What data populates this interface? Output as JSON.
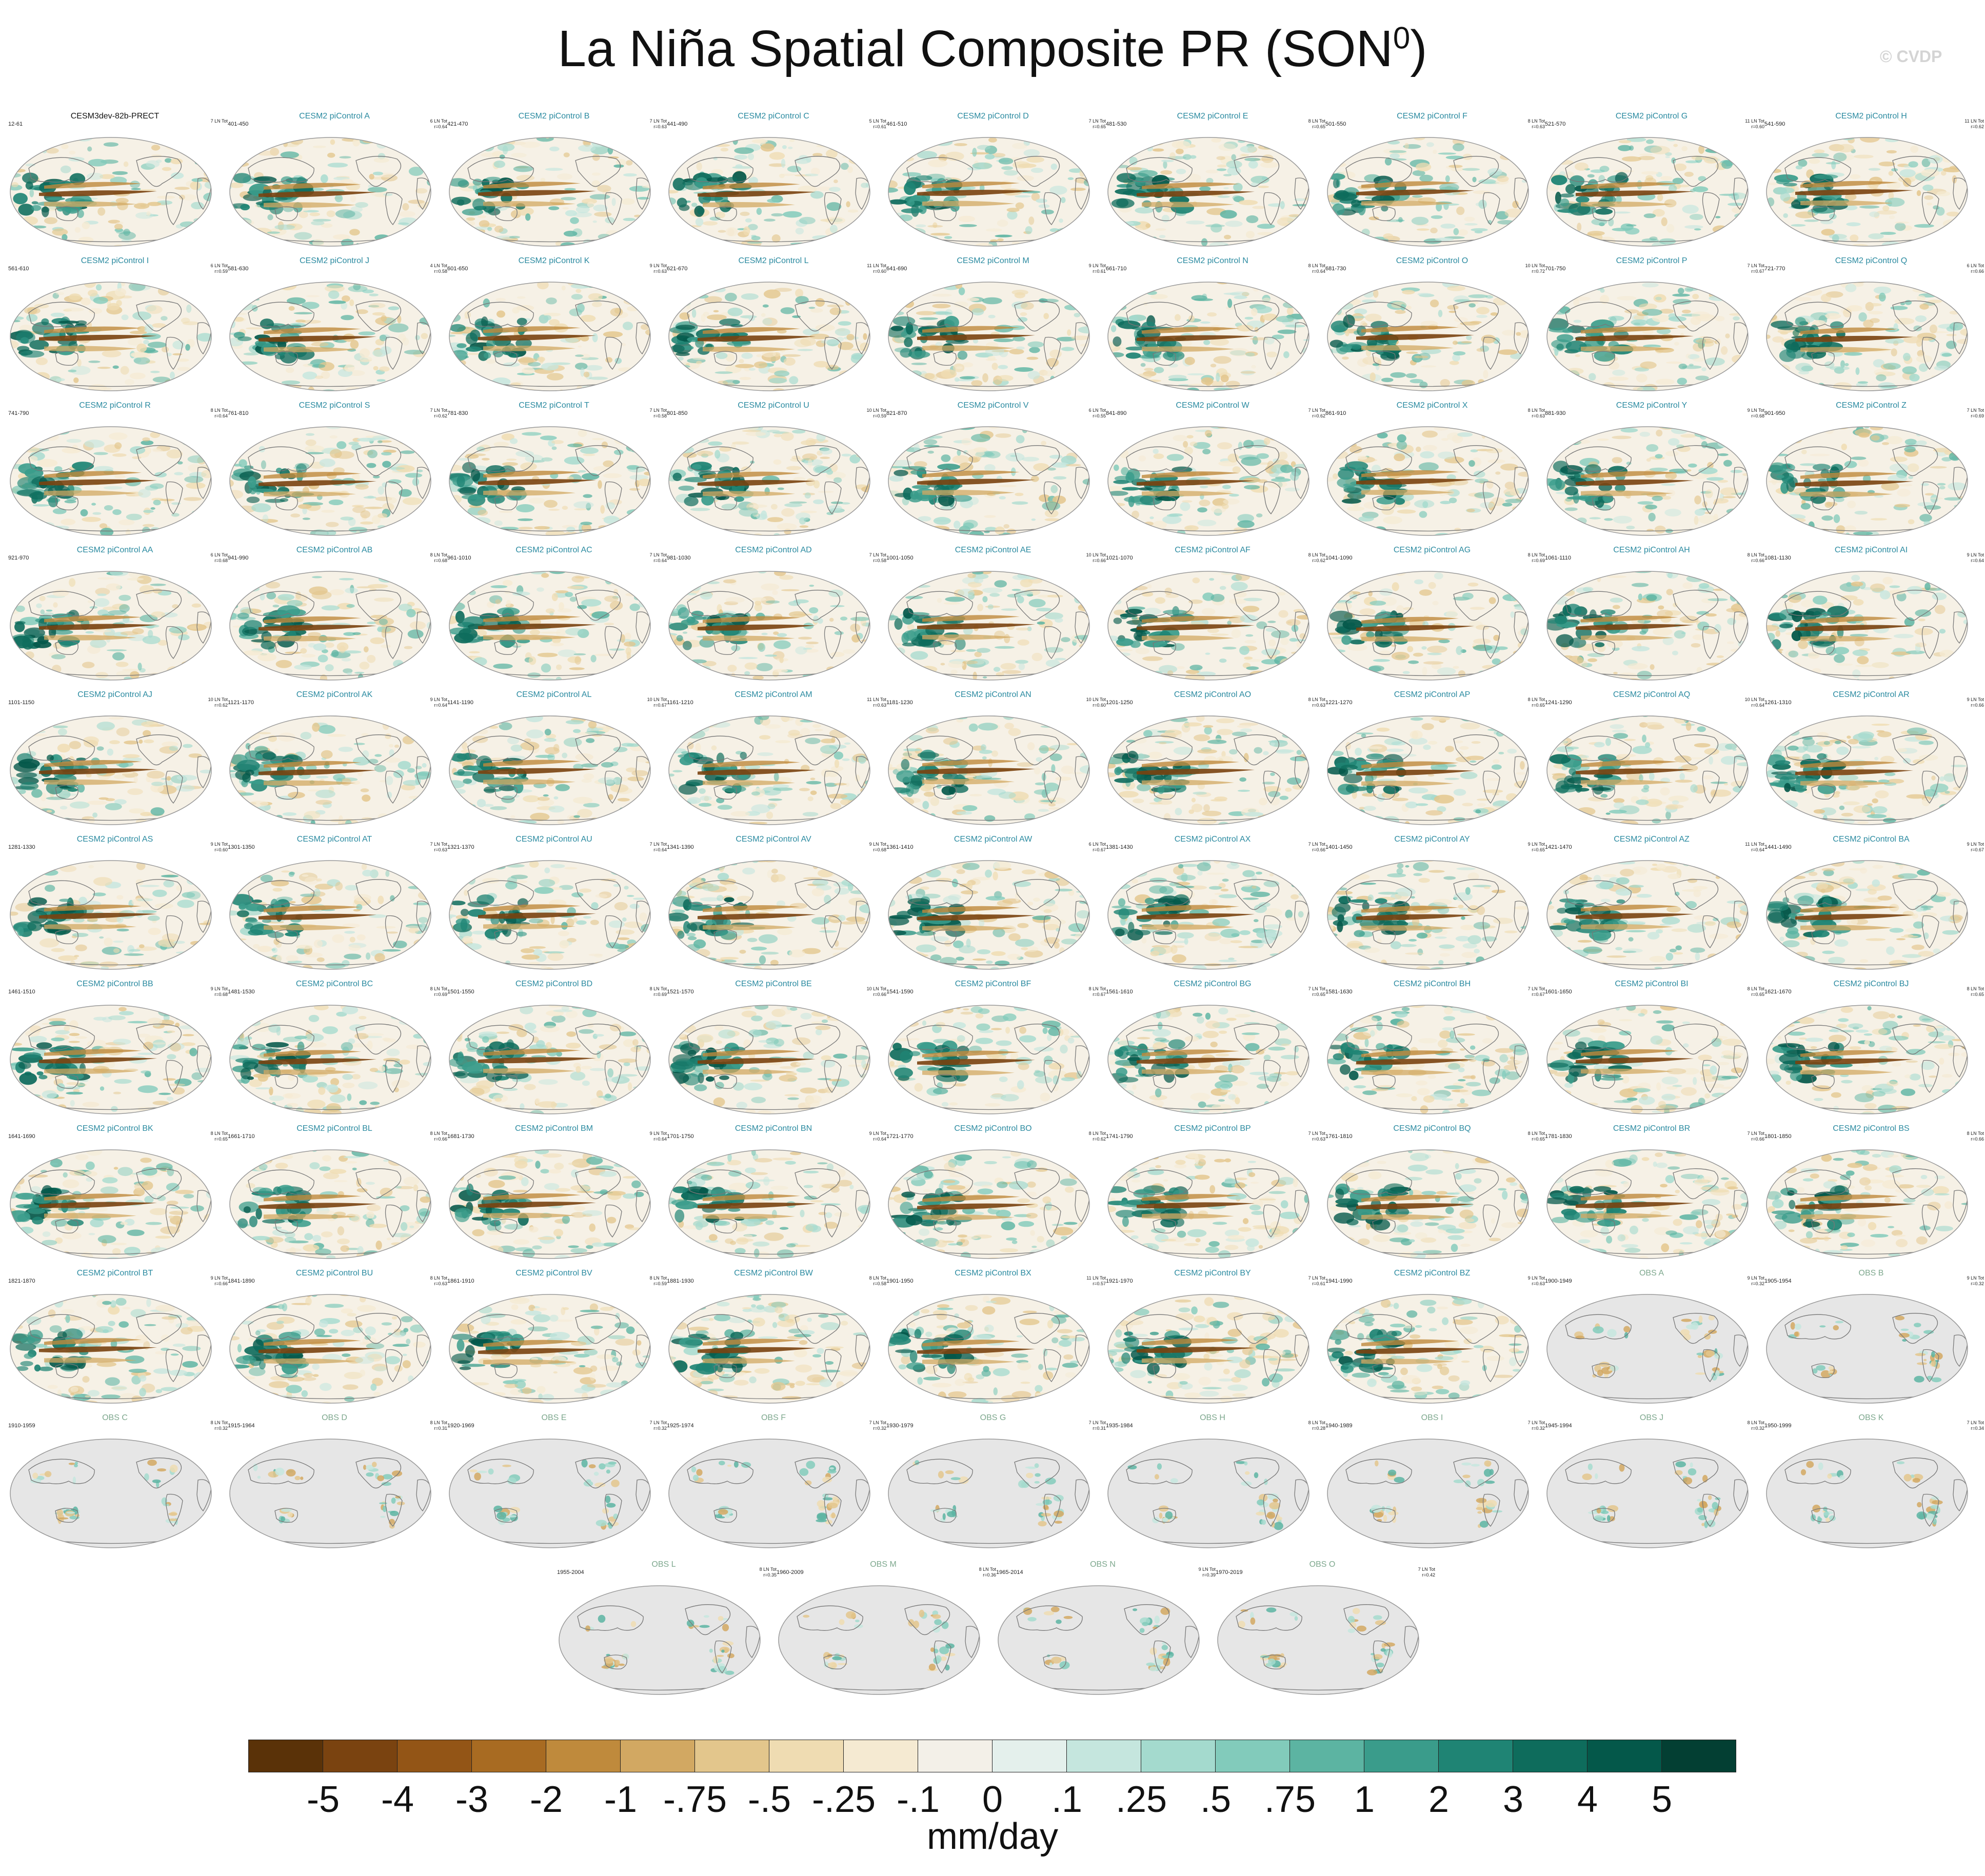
{
  "page": {
    "title": "La Niña Spatial Composite PR (SON",
    "title_superscript": "0",
    "title_close": ")",
    "watermark": "© CVDP"
  },
  "chart_data": {
    "type": "heatmap",
    "description": "Composite precipitation anomaly maps",
    "colors": {
      "main_title": "#111111",
      "model_title": "#2a8aa0",
      "obs_title": "#7ea88e",
      "land_missing": "#e6e6e6",
      "ocean_neutral": "#f6f1e6"
    },
    "panels": [
      {
        "title": "CESM3dev-82b-PRECT",
        "years": "12-61",
        "count": "7 LN Tot",
        "r": "",
        "kind": "main"
      },
      {
        "title": "CESM2 piControl A",
        "years": "401-450",
        "count": "6 LN Tot",
        "r": "r=0.64",
        "kind": "model"
      },
      {
        "title": "CESM2 piControl B",
        "years": "421-470",
        "count": "7 LN Tot",
        "r": "r=0.63",
        "kind": "model"
      },
      {
        "title": "CESM2 piControl C",
        "years": "441-490",
        "count": "5 LN Tot",
        "r": "r=0.61",
        "kind": "model"
      },
      {
        "title": "CESM2 piControl D",
        "years": "461-510",
        "count": "7 LN Tot",
        "r": "r=0.65",
        "kind": "model"
      },
      {
        "title": "CESM2 piControl E",
        "years": "481-530",
        "count": "8 LN Tot",
        "r": "r=0.65",
        "kind": "model"
      },
      {
        "title": "CESM2 piControl F",
        "years": "501-550",
        "count": "8 LN Tot",
        "r": "r=0.63",
        "kind": "model"
      },
      {
        "title": "CESM2 piControl G",
        "years": "521-570",
        "count": "11 LN Tot",
        "r": "r=0.60",
        "kind": "model"
      },
      {
        "title": "CESM2 piControl H",
        "years": "541-590",
        "count": "11 LN Tot",
        "r": "r=0.62",
        "kind": "model"
      },
      {
        "title": "CESM2 piControl I",
        "years": "561-610",
        "count": "6 LN Tot",
        "r": "r=0.59",
        "kind": "model"
      },
      {
        "title": "CESM2 piControl J",
        "years": "581-630",
        "count": "4 LN Tot",
        "r": "r=0.58",
        "kind": "model"
      },
      {
        "title": "CESM2 piControl K",
        "years": "601-650",
        "count": "9 LN Tot",
        "r": "r=0.63",
        "kind": "model"
      },
      {
        "title": "CESM2 piControl L",
        "years": "621-670",
        "count": "11 LN Tot",
        "r": "r=0.60",
        "kind": "model"
      },
      {
        "title": "CESM2 piControl M",
        "years": "641-690",
        "count": "9 LN Tot",
        "r": "r=0.61",
        "kind": "model"
      },
      {
        "title": "CESM2 piControl N",
        "years": "661-710",
        "count": "8 LN Tot",
        "r": "r=0.64",
        "kind": "model"
      },
      {
        "title": "CESM2 piControl O",
        "years": "681-730",
        "count": "10 LN Tot",
        "r": "r=0.72",
        "kind": "model"
      },
      {
        "title": "CESM2 piControl P",
        "years": "701-750",
        "count": "7 LN Tot",
        "r": "r=0.67",
        "kind": "model"
      },
      {
        "title": "CESM2 piControl Q",
        "years": "721-770",
        "count": "6 LN Tot",
        "r": "r=0.66",
        "kind": "model"
      },
      {
        "title": "CESM2 piControl R",
        "years": "741-790",
        "count": "8 LN Tot",
        "r": "r=0.64",
        "kind": "model"
      },
      {
        "title": "CESM2 piControl S",
        "years": "761-810",
        "count": "7 LN Tot",
        "r": "r=0.62",
        "kind": "model"
      },
      {
        "title": "CESM2 piControl T",
        "years": "781-830",
        "count": "7 LN Tot",
        "r": "r=0.58",
        "kind": "model"
      },
      {
        "title": "CESM2 piControl U",
        "years": "801-850",
        "count": "10 LN Tot",
        "r": "r=0.59",
        "kind": "model"
      },
      {
        "title": "CESM2 piControl V",
        "years": "821-870",
        "count": "6 LN Tot",
        "r": "r=0.55",
        "kind": "model"
      },
      {
        "title": "CESM2 piControl W",
        "years": "841-890",
        "count": "7 LN Tot",
        "r": "r=0.62",
        "kind": "model"
      },
      {
        "title": "CESM2 piControl X",
        "years": "861-910",
        "count": "8 LN Tot",
        "r": "r=0.63",
        "kind": "model"
      },
      {
        "title": "CESM2 piControl Y",
        "years": "881-930",
        "count": "9 LN Tot",
        "r": "r=0.68",
        "kind": "model"
      },
      {
        "title": "CESM2 piControl Z",
        "years": "901-950",
        "count": "7 LN Tot",
        "r": "r=0.69",
        "kind": "model"
      },
      {
        "title": "CESM2 piControl AA",
        "years": "921-970",
        "count": "6 LN Tot",
        "r": "r=0.68",
        "kind": "model"
      },
      {
        "title": "CESM2 piControl AB",
        "years": "941-990",
        "count": "8 LN Tot",
        "r": "r=0.68",
        "kind": "model"
      },
      {
        "title": "CESM2 piControl AC",
        "years": "961-1010",
        "count": "7 LN Tot",
        "r": "r=0.64",
        "kind": "model"
      },
      {
        "title": "CESM2 piControl AD",
        "years": "981-1030",
        "count": "7 LN Tot",
        "r": "r=0.58",
        "kind": "model"
      },
      {
        "title": "CESM2 piControl AE",
        "years": "1001-1050",
        "count": "10 LN Tot",
        "r": "r=0.66",
        "kind": "model"
      },
      {
        "title": "CESM2 piControl AF",
        "years": "1021-1070",
        "count": "8 LN Tot",
        "r": "r=0.62",
        "kind": "model"
      },
      {
        "title": "CESM2 piControl AG",
        "years": "1041-1090",
        "count": "8 LN Tot",
        "r": "r=0.69",
        "kind": "model"
      },
      {
        "title": "CESM2 piControl AH",
        "years": "1061-1110",
        "count": "8 LN Tot",
        "r": "r=0.66",
        "kind": "model"
      },
      {
        "title": "CESM2 piControl AI",
        "years": "1081-1130",
        "count": "9 LN Tot",
        "r": "r=0.64",
        "kind": "model"
      },
      {
        "title": "CESM2 piControl AJ",
        "years": "1101-1150",
        "count": "10 LN Tot",
        "r": "r=0.62",
        "kind": "model"
      },
      {
        "title": "CESM2 piControl AK",
        "years": "1121-1170",
        "count": "9 LN Tot",
        "r": "r=0.64",
        "kind": "model"
      },
      {
        "title": "CESM2 piControl AL",
        "years": "1141-1190",
        "count": "10 LN Tot",
        "r": "r=0.67",
        "kind": "model"
      },
      {
        "title": "CESM2 piControl AM",
        "years": "1161-1210",
        "count": "11 LN Tot",
        "r": "r=0.63",
        "kind": "model"
      },
      {
        "title": "CESM2 piControl AN",
        "years": "1181-1230",
        "count": "10 LN Tot",
        "r": "r=0.60",
        "kind": "model"
      },
      {
        "title": "CESM2 piControl AO",
        "years": "1201-1250",
        "count": "8 LN Tot",
        "r": "r=0.63",
        "kind": "model"
      },
      {
        "title": "CESM2 piControl AP",
        "years": "1221-1270",
        "count": "8 LN Tot",
        "r": "r=0.65",
        "kind": "model"
      },
      {
        "title": "CESM2 piControl AQ",
        "years": "1241-1290",
        "count": "10 LN Tot",
        "r": "r=0.64",
        "kind": "model"
      },
      {
        "title": "CESM2 piControl AR",
        "years": "1261-1310",
        "count": "9 LN Tot",
        "r": "r=0.66",
        "kind": "model"
      },
      {
        "title": "CESM2 piControl AS",
        "years": "1281-1330",
        "count": "9 LN Tot",
        "r": "r=0.60",
        "kind": "model"
      },
      {
        "title": "CESM2 piControl AT",
        "years": "1301-1350",
        "count": "7 LN Tot",
        "r": "r=0.63",
        "kind": "model"
      },
      {
        "title": "CESM2 piControl AU",
        "years": "1321-1370",
        "count": "7 LN Tot",
        "r": "r=0.64",
        "kind": "model"
      },
      {
        "title": "CESM2 piControl AV",
        "years": "1341-1390",
        "count": "9 LN Tot",
        "r": "r=0.68",
        "kind": "model"
      },
      {
        "title": "CESM2 piControl AW",
        "years": "1361-1410",
        "count": "6 LN Tot",
        "r": "r=0.67",
        "kind": "model"
      },
      {
        "title": "CESM2 piControl AX",
        "years": "1381-1430",
        "count": "7 LN Tot",
        "r": "r=0.66",
        "kind": "model"
      },
      {
        "title": "CESM2 piControl AY",
        "years": "1401-1450",
        "count": "9 LN Tot",
        "r": "r=0.65",
        "kind": "model"
      },
      {
        "title": "CESM2 piControl AZ",
        "years": "1421-1470",
        "count": "11 LN Tot",
        "r": "r=0.64",
        "kind": "model"
      },
      {
        "title": "CESM2 piControl BA",
        "years": "1441-1490",
        "count": "9 LN Tot",
        "r": "r=0.67",
        "kind": "model"
      },
      {
        "title": "CESM2 piControl BB",
        "years": "1461-1510",
        "count": "9 LN Tot",
        "r": "r=0.68",
        "kind": "model"
      },
      {
        "title": "CESM2 piControl BC",
        "years": "1481-1530",
        "count": "8 LN Tot",
        "r": "r=0.69",
        "kind": "model"
      },
      {
        "title": "CESM2 piControl BD",
        "years": "1501-1550",
        "count": "8 LN Tot",
        "r": "r=0.69",
        "kind": "model"
      },
      {
        "title": "CESM2 piControl BE",
        "years": "1521-1570",
        "count": "10 LN Tot",
        "r": "r=0.66",
        "kind": "model"
      },
      {
        "title": "CESM2 piControl BF",
        "years": "1541-1590",
        "count": "8 LN Tot",
        "r": "r=0.67",
        "kind": "model"
      },
      {
        "title": "CESM2 piControl BG",
        "years": "1561-1610",
        "count": "7 LN Tot",
        "r": "r=0.65",
        "kind": "model"
      },
      {
        "title": "CESM2 piControl BH",
        "years": "1581-1630",
        "count": "7 LN Tot",
        "r": "r=0.67",
        "kind": "model"
      },
      {
        "title": "CESM2 piControl BI",
        "years": "1601-1650",
        "count": "8 LN Tot",
        "r": "r=0.65",
        "kind": "model"
      },
      {
        "title": "CESM2 piControl BJ",
        "years": "1621-1670",
        "count": "8 LN Tot",
        "r": "r=0.65",
        "kind": "model"
      },
      {
        "title": "CESM2 piControl BK",
        "years": "1641-1690",
        "count": "8 LN Tot",
        "r": "r=0.65",
        "kind": "model"
      },
      {
        "title": "CESM2 piControl BL",
        "years": "1661-1710",
        "count": "8 LN Tot",
        "r": "r=0.66",
        "kind": "model"
      },
      {
        "title": "CESM2 piControl BM",
        "years": "1681-1730",
        "count": "9 LN Tot",
        "r": "r=0.64",
        "kind": "model"
      },
      {
        "title": "CESM2 piControl BN",
        "years": "1701-1750",
        "count": "9 LN Tot",
        "r": "r=0.64",
        "kind": "model"
      },
      {
        "title": "CESM2 piControl BO",
        "years": "1721-1770",
        "count": "8 LN Tot",
        "r": "r=0.62",
        "kind": "model"
      },
      {
        "title": "CESM2 piControl BP",
        "years": "1741-1790",
        "count": "7 LN Tot",
        "r": "r=0.63",
        "kind": "model"
      },
      {
        "title": "CESM2 piControl BQ",
        "years": "1761-1810",
        "count": "8 LN Tot",
        "r": "r=0.65",
        "kind": "model"
      },
      {
        "title": "CESM2 piControl BR",
        "years": "1781-1830",
        "count": "7 LN Tot",
        "r": "r=0.66",
        "kind": "model"
      },
      {
        "title": "CESM2 piControl BS",
        "years": "1801-1850",
        "count": "8 LN Tot",
        "r": "r=0.66",
        "kind": "model"
      },
      {
        "title": "CESM2 piControl BT",
        "years": "1821-1870",
        "count": "9 LN Tot",
        "r": "r=0.66",
        "kind": "model"
      },
      {
        "title": "CESM2 piControl BU",
        "years": "1841-1890",
        "count": "8 LN Tot",
        "r": "r=0.63",
        "kind": "model"
      },
      {
        "title": "CESM2 piControl BV",
        "years": "1861-1910",
        "count": "8 LN Tot",
        "r": "r=0.59",
        "kind": "model"
      },
      {
        "title": "CESM2 piControl BW",
        "years": "1881-1930",
        "count": "8 LN Tot",
        "r": "r=0.58",
        "kind": "model"
      },
      {
        "title": "CESM2 piControl BX",
        "years": "1901-1950",
        "count": "11 LN Tot",
        "r": "r=0.57",
        "kind": "model"
      },
      {
        "title": "CESM2 piControl BY",
        "years": "1921-1970",
        "count": "7 LN Tot",
        "r": "r=0.61",
        "kind": "model"
      },
      {
        "title": "CESM2 piControl BZ",
        "years": "1941-1990",
        "count": "9 LN Tot",
        "r": "r=0.63",
        "kind": "model"
      },
      {
        "title": "OBS A",
        "years": "1900-1949",
        "count": "9 LN Tot",
        "r": "r=0.32",
        "kind": "obs"
      },
      {
        "title": "OBS B",
        "years": "1905-1954",
        "count": "9 LN Tot",
        "r": "r=0.32",
        "kind": "obs"
      },
      {
        "title": "OBS C",
        "years": "1910-1959",
        "count": "8 LN Tot",
        "r": "r=0.32",
        "kind": "obs"
      },
      {
        "title": "OBS D",
        "years": "1915-1964",
        "count": "8 LN Tot",
        "r": "r=0.31",
        "kind": "obs"
      },
      {
        "title": "OBS E",
        "years": "1920-1969",
        "count": "7 LN Tot",
        "r": "r=0.32",
        "kind": "obs"
      },
      {
        "title": "OBS F",
        "years": "1925-1974",
        "count": "7 LN Tot",
        "r": "r=0.32",
        "kind": "obs"
      },
      {
        "title": "OBS G",
        "years": "1930-1979",
        "count": "7 LN Tot",
        "r": "r=0.31",
        "kind": "obs"
      },
      {
        "title": "OBS H",
        "years": "1935-1984",
        "count": "8 LN Tot",
        "r": "r=0.28",
        "kind": "obs"
      },
      {
        "title": "OBS I",
        "years": "1940-1989",
        "count": "7 LN Tot",
        "r": "r=0.32",
        "kind": "obs"
      },
      {
        "title": "OBS J",
        "years": "1945-1994",
        "count": "8 LN Tot",
        "r": "r=0.32",
        "kind": "obs"
      },
      {
        "title": "OBS K",
        "years": "1950-1999",
        "count": "7 LN Tot",
        "r": "r=0.34",
        "kind": "obs"
      },
      {
        "title": "OBS L",
        "years": "1955-2004",
        "count": "8 LN Tot",
        "r": "r=0.35",
        "kind": "obs"
      },
      {
        "title": "OBS M",
        "years": "1960-2009",
        "count": "8 LN Tot",
        "r": "r=0.36",
        "kind": "obs"
      },
      {
        "title": "OBS N",
        "years": "1965-2014",
        "count": "9 LN Tot",
        "r": "r=0.39",
        "kind": "obs"
      },
      {
        "title": "OBS O",
        "years": "1970-2019",
        "count": "7 LN Tot",
        "r": "r=0.42",
        "kind": "obs"
      }
    ],
    "colorbar": {
      "labels": [
        "-5",
        "-4",
        "-3",
        "-2",
        "-1",
        "-.75",
        "-.5",
        "-.25",
        "-.1",
        "0",
        ".1",
        ".25",
        ".5",
        ".75",
        "1",
        "2",
        "3",
        "4",
        "5"
      ],
      "colors": [
        "#5a3208",
        "#7a4310",
        "#935516",
        "#a86b22",
        "#bf8a3c",
        "#d2a862",
        "#e3c68c",
        "#efdcb2",
        "#f5ead2",
        "#f3f0e8",
        "#e4f0ec",
        "#c5e6de",
        "#a4dace",
        "#82cbbb",
        "#5cb4a2",
        "#3a9c8b",
        "#1f8474",
        "#0e6c5c",
        "#04584a",
        "#033f33"
      ],
      "units": "mm/day"
    }
  }
}
